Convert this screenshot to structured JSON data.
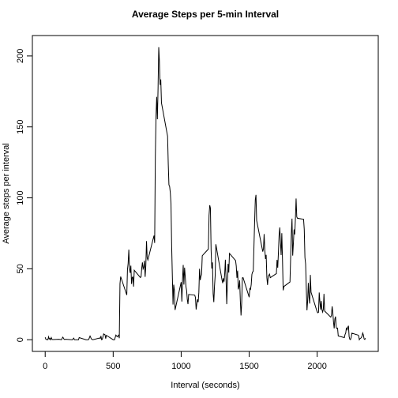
{
  "chart_data": {
    "type": "line",
    "title": "Average Steps per 5-min Interval",
    "xlabel": "Interval (seconds)",
    "ylabel": "Average steps per interval",
    "color": "#000000",
    "xlim": [
      -94.2,
      2449.2
    ],
    "ylim": [
      -8.24,
      214.4
    ],
    "xticks": [
      0,
      500,
      1000,
      1500,
      2000
    ],
    "yticks": [
      0,
      50,
      100,
      150,
      200
    ],
    "x": [
      0,
      5,
      10,
      15,
      20,
      25,
      30,
      35,
      40,
      45,
      50,
      55,
      100,
      110,
      120,
      125,
      130,
      140,
      150,
      200,
      210,
      215,
      230,
      245,
      250,
      300,
      315,
      320,
      330,
      340,
      350,
      400,
      405,
      410,
      415,
      420,
      430,
      440,
      445,
      450,
      500,
      510,
      520,
      530,
      540,
      545,
      550,
      555,
      600,
      605,
      610,
      615,
      620,
      625,
      630,
      635,
      640,
      645,
      650,
      655,
      700,
      705,
      710,
      715,
      720,
      725,
      730,
      735,
      740,
      745,
      750,
      755,
      800,
      805,
      810,
      815,
      820,
      825,
      830,
      835,
      840,
      845,
      850,
      855,
      900,
      905,
      910,
      915,
      920,
      925,
      930,
      935,
      940,
      945,
      950,
      955,
      1000,
      1005,
      1010,
      1015,
      1020,
      1025,
      1030,
      1035,
      1040,
      1045,
      1050,
      1055,
      1100,
      1105,
      1110,
      1115,
      1120,
      1125,
      1130,
      1135,
      1140,
      1145,
      1150,
      1155,
      1200,
      1205,
      1210,
      1215,
      1220,
      1225,
      1230,
      1235,
      1240,
      1245,
      1250,
      1255,
      1300,
      1305,
      1310,
      1315,
      1320,
      1325,
      1330,
      1335,
      1340,
      1345,
      1350,
      1355,
      1400,
      1405,
      1410,
      1415,
      1420,
      1425,
      1430,
      1435,
      1440,
      1445,
      1450,
      1455,
      1500,
      1505,
      1510,
      1515,
      1520,
      1525,
      1530,
      1535,
      1540,
      1545,
      1550,
      1555,
      1600,
      1605,
      1610,
      1615,
      1620,
      1625,
      1630,
      1635,
      1640,
      1645,
      1650,
      1655,
      1700,
      1705,
      1710,
      1715,
      1720,
      1725,
      1730,
      1735,
      1740,
      1745,
      1750,
      1755,
      1800,
      1805,
      1810,
      1815,
      1820,
      1825,
      1830,
      1835,
      1840,
      1845,
      1850,
      1855,
      1900,
      1905,
      1910,
      1915,
      1920,
      1925,
      1930,
      1935,
      1940,
      1945,
      1950,
      1955,
      2000,
      2005,
      2010,
      2015,
      2020,
      2025,
      2030,
      2035,
      2040,
      2045,
      2050,
      2055,
      2100,
      2105,
      2110,
      2115,
      2120,
      2125,
      2130,
      2135,
      2140,
      2145,
      2150,
      2155,
      2200,
      2205,
      2210,
      2215,
      2220,
      2225,
      2230,
      2235,
      2240,
      2245,
      2250,
      2255,
      2300,
      2305,
      2310,
      2315,
      2320,
      2325,
      2330,
      2335,
      2340,
      2345,
      2350,
      2355
    ],
    "values": [
      1.7,
      0.3,
      0.1,
      0.2,
      0,
      2.1,
      0.5,
      0.9,
      0,
      1.5,
      0.3,
      0.1,
      0.3,
      0.2,
      0,
      1.1,
      1.8,
      0.2,
      0.3,
      0,
      1.1,
      0,
      0,
      0,
      1.5,
      0,
      0,
      0.2,
      2.6,
      0.5,
      0,
      1.2,
      0.9,
      2.6,
      0,
      0.3,
      4.1,
      3.5,
      0.8,
      3.1,
      0,
      0,
      3.3,
      2.1,
      3.2,
      1.1,
      39.5,
      44.5,
      31.5,
      49.3,
      53.8,
      63.5,
      50,
      47.1,
      52.2,
      39.3,
      44,
      44.2,
      37.4,
      49,
      43.8,
      44.4,
      50.5,
      54.5,
      49.9,
      51,
      55.7,
      44.3,
      52.3,
      69.5,
      57.8,
      56.2,
      73.4,
      68.2,
      129.4,
      157.5,
      171.2,
      155.4,
      177.3,
      206.2,
      195.9,
      179.6,
      183.4,
      167,
      143.5,
      124,
      109.1,
      108.1,
      103.7,
      95.9,
      66.2,
      45.2,
      24.8,
      38.8,
      35,
      21,
      40.6,
      26.9,
      42.4,
      52.7,
      38.9,
      50.8,
      44.3,
      37.4,
      34.7,
      28.3,
      25.1,
      31.9,
      31.4,
      29.7,
      21.3,
      25.5,
      28.4,
      26.5,
      33.4,
      50,
      42,
      44.6,
      46,
      59.2,
      63.9,
      87.7,
      94.8,
      92.8,
      63.4,
      50.2,
      54.5,
      32.4,
      26.5,
      37.7,
      45.1,
      67.3,
      42.3,
      39.9,
      43.3,
      40.9,
      46.2,
      56.4,
      42.8,
      25.1,
      39.9,
      53.5,
      47.3,
      60.8,
      55.8,
      51.9,
      43.6,
      48.7,
      35.5,
      37.5,
      41.8,
      27.5,
      17.1,
      26.1,
      43.6,
      43.8,
      30,
      36.1,
      35.5,
      38.8,
      46,
      47.8,
      48.1,
      65.3,
      82.9,
      98.7,
      102.1,
      83.96,
      62.1,
      64.1,
      74.5,
      63.2,
      56.9,
      59.8,
      43.9,
      38.6,
      44.7,
      45.5,
      46.2,
      43.7,
      46.6,
      56.3,
      50.7,
      61.2,
      73.4,
      79.1,
      68.9,
      59.7,
      75.1,
      56.5,
      34.8,
      37.5,
      40.7,
      58,
      74.7,
      85.3,
      59.3,
      67.8,
      77.7,
      74.2,
      85.3,
      99.5,
      86.6,
      85.6,
      84.9,
      77.8,
      58,
      53.4,
      36.3,
      20.7,
      27.4,
      40,
      30.2,
      25.5,
      45.7,
      33.5,
      19.6,
      19,
      19.3,
      33.3,
      26.8,
      21.2,
      27.3,
      21.3,
      19.5,
      21.3,
      32.3,
      20.2,
      15.9,
      17.2,
      23.5,
      19.2,
      12.5,
      8,
      14.7,
      16.3,
      8.7,
      7.8,
      8.1,
      2.6,
      1.5,
      3.7,
      4.8,
      8.5,
      7.1,
      8.7,
      9.8,
      2.2,
      0.3,
      0.1,
      1.6,
      4.6,
      3.3,
      2.8,
      0,
      0.8,
      1,
      1.6,
      2.6,
      4.7,
      3.3,
      0.6,
      0.2,
      1.1
    ]
  }
}
